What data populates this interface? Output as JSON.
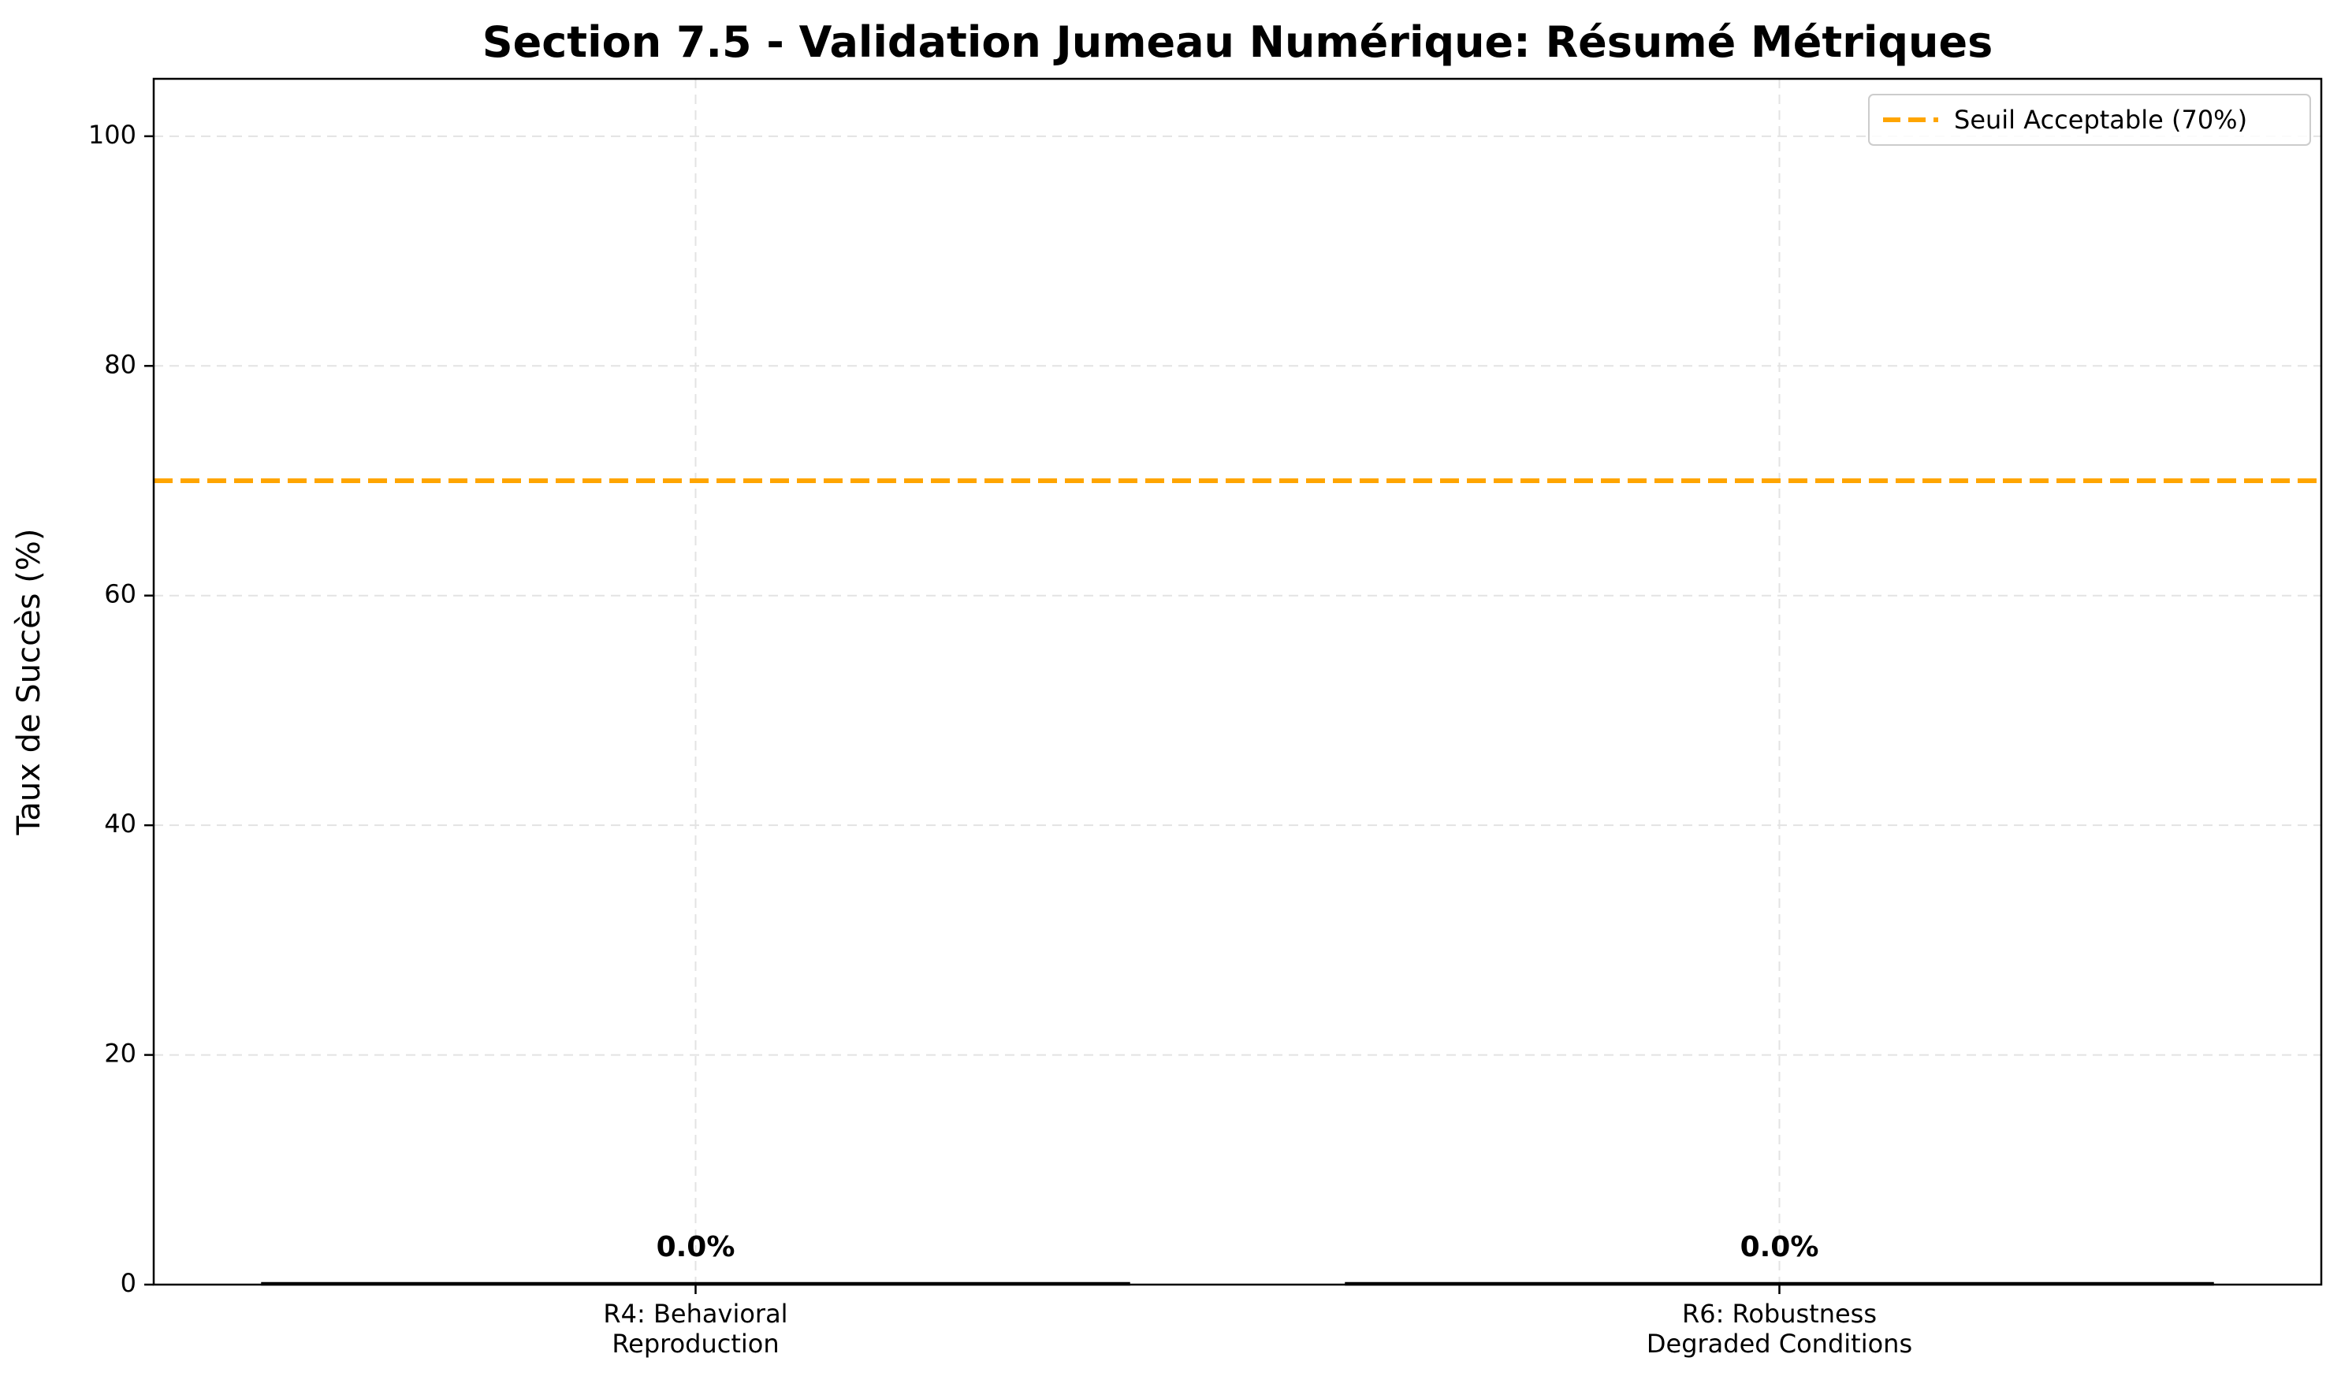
{
  "chart_data": {
    "type": "bar",
    "title": "Section 7.5 - Validation Jumeau Numérique: Résumé Métriques",
    "xlabel": "",
    "ylabel": "Taux de Succès (%)",
    "categories": [
      [
        "R4: Behavioral",
        "Reproduction"
      ],
      [
        "R6: Robustness",
        "Degraded Conditions"
      ]
    ],
    "values": [
      0.0,
      0.0
    ],
    "value_labels": [
      "0.0%",
      "0.0%"
    ],
    "ylim": [
      0,
      105
    ],
    "yticks": [
      0,
      20,
      40,
      60,
      80,
      100
    ],
    "ytick_labels": [
      "0",
      "20",
      "40",
      "60",
      "80",
      "100"
    ],
    "grid": true,
    "threshold": {
      "value": 70,
      "label": "Seuil Acceptable (70%)",
      "color": "#FFA500",
      "style": "dashed"
    },
    "legend_position": "top-right",
    "bar_edge_color": "#000000"
  }
}
